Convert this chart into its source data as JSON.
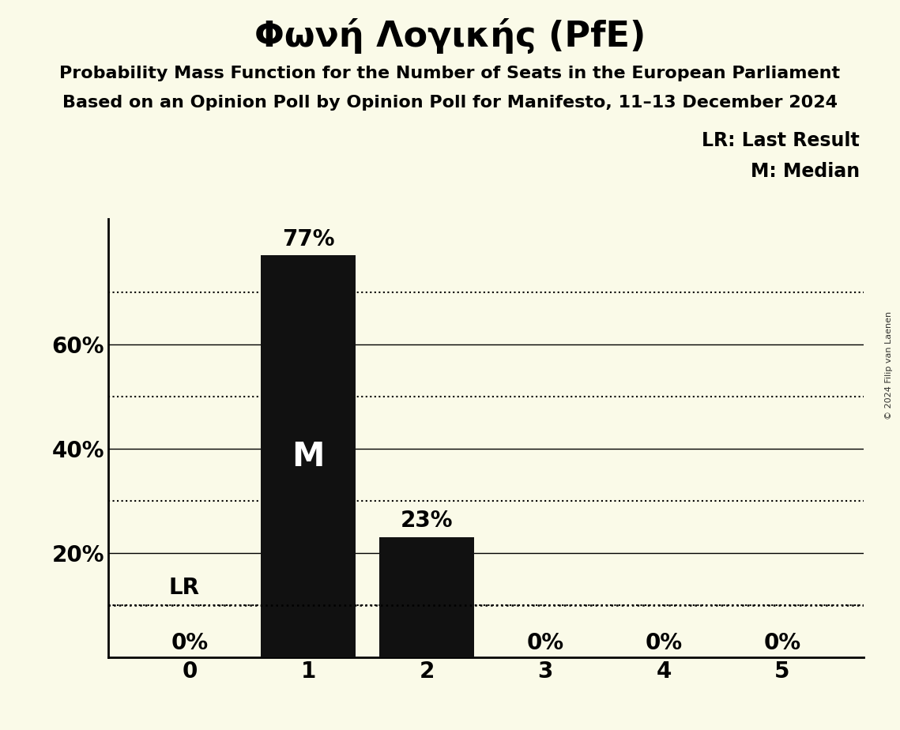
{
  "title": "Φωνή Λογικής (PfE)",
  "subtitle1": "Probability Mass Function for the Number of Seats in the European Parliament",
  "subtitle2": "Based on an Opinion Poll by Opinion Poll for Manifesto, 11–13 December 2024",
  "categories": [
    0,
    1,
    2,
    3,
    4,
    5
  ],
  "values": [
    0.0,
    0.77,
    0.23,
    0.0,
    0.0,
    0.0
  ],
  "bar_labels": [
    "0%",
    "77%",
    "23%",
    "0%",
    "0%",
    "0%"
  ],
  "bar_color": "#111111",
  "background_color": "#fafae8",
  "ylim": [
    0,
    0.84
  ],
  "yticks": [
    0.2,
    0.4,
    0.6
  ],
  "ytick_labels": [
    "20%",
    "40%",
    "60%"
  ],
  "dotted_gridlines": [
    0.1,
    0.3,
    0.5,
    0.7
  ],
  "solid_gridlines": [
    0.2,
    0.4,
    0.6
  ],
  "lr_value": 0.1,
  "lr_label": "LR",
  "median_bar": 1,
  "median_label": "M",
  "legend_lr": "LR: Last Result",
  "legend_m": "M: Median",
  "copyright": "© 2024 Filip van Laenen",
  "title_fontsize": 32,
  "subtitle_fontsize": 16,
  "bar_label_fontsize": 20,
  "axis_tick_fontsize": 20,
  "legend_fontsize": 17,
  "median_fontsize": 30
}
